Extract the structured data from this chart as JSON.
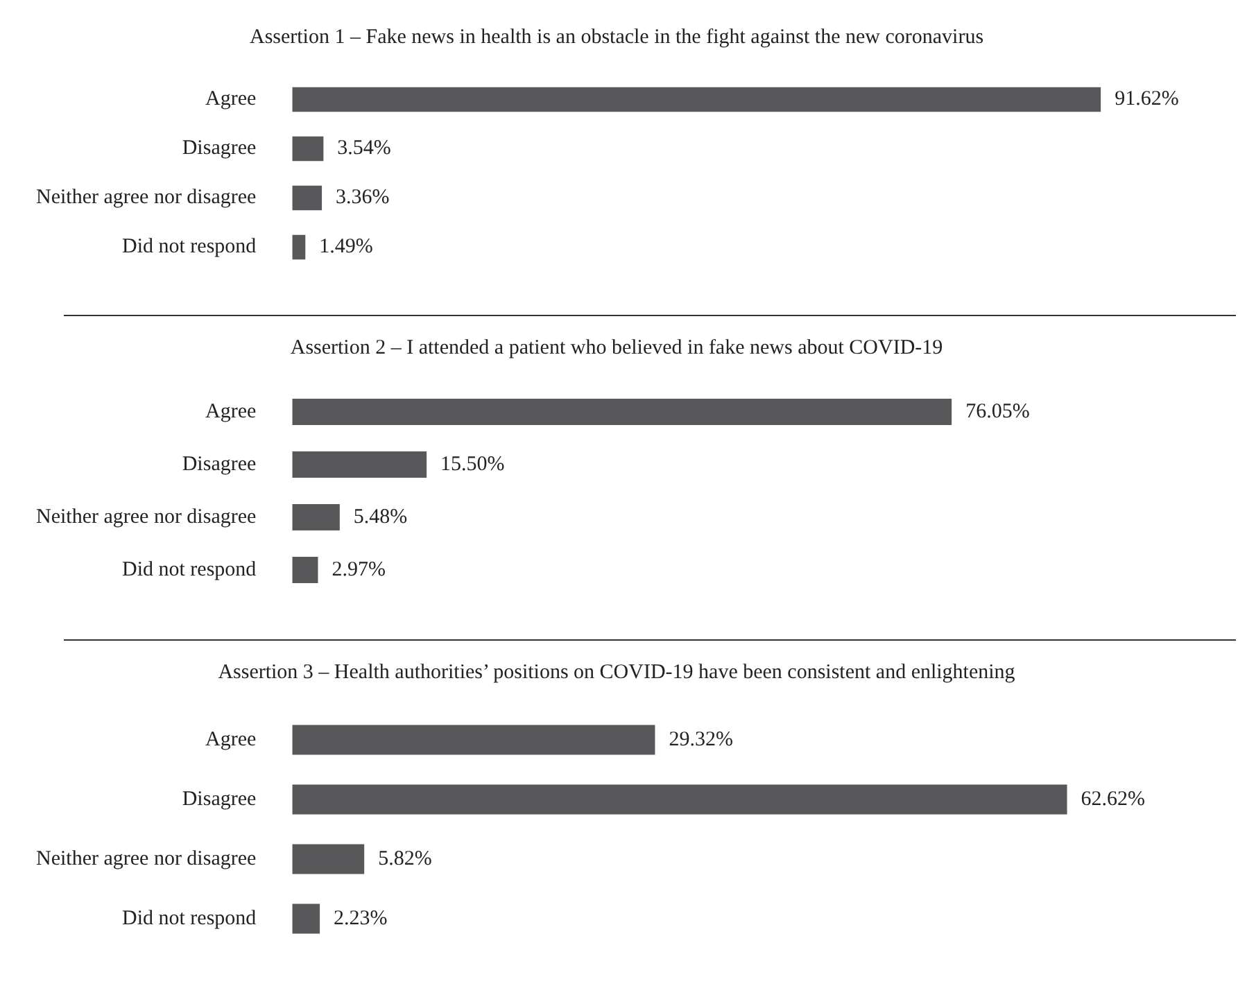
{
  "chart_data": [
    {
      "type": "bar",
      "orientation": "horizontal",
      "title": "Assertion 1 – Fake news in health is an obstacle in the fight against the new coronavirus",
      "categories": [
        "Agree",
        "Disagree",
        "Neither agree nor disagree",
        "Did not respond"
      ],
      "values": [
        91.62,
        3.54,
        3.36,
        1.49
      ],
      "value_labels": [
        "91.62%",
        "3.54%",
        "3.36%",
        "1.49%"
      ],
      "color": "#58585a",
      "grid": false,
      "tick_labels": "y"
    },
    {
      "type": "bar",
      "orientation": "horizontal",
      "title": "Assertion 2 – I attended a patient who believed in fake news about COVID-19",
      "categories": [
        "Agree",
        "Disagree",
        "Neither agree nor disagree",
        "Did not respond"
      ],
      "values": [
        76.05,
        15.5,
        5.48,
        2.97
      ],
      "value_labels": [
        "76.05%",
        "15.50%",
        "5.48%",
        "2.97%"
      ],
      "color": "#58585a",
      "grid": false,
      "tick_labels": "y"
    },
    {
      "type": "bar",
      "orientation": "horizontal",
      "title": "Assertion 3 – Health authorities’ positions on COVID-19 have been consistent and enlightening",
      "categories": [
        "Agree",
        "Disagree",
        "Neither agree nor disagree",
        "Did not respond"
      ],
      "values": [
        29.32,
        62.62,
        5.82,
        2.23
      ],
      "value_labels": [
        "29.32%",
        "62.62%",
        "5.82%",
        "2.23%"
      ],
      "color": "#58585a",
      "grid": false,
      "tick_labels": "y"
    }
  ]
}
